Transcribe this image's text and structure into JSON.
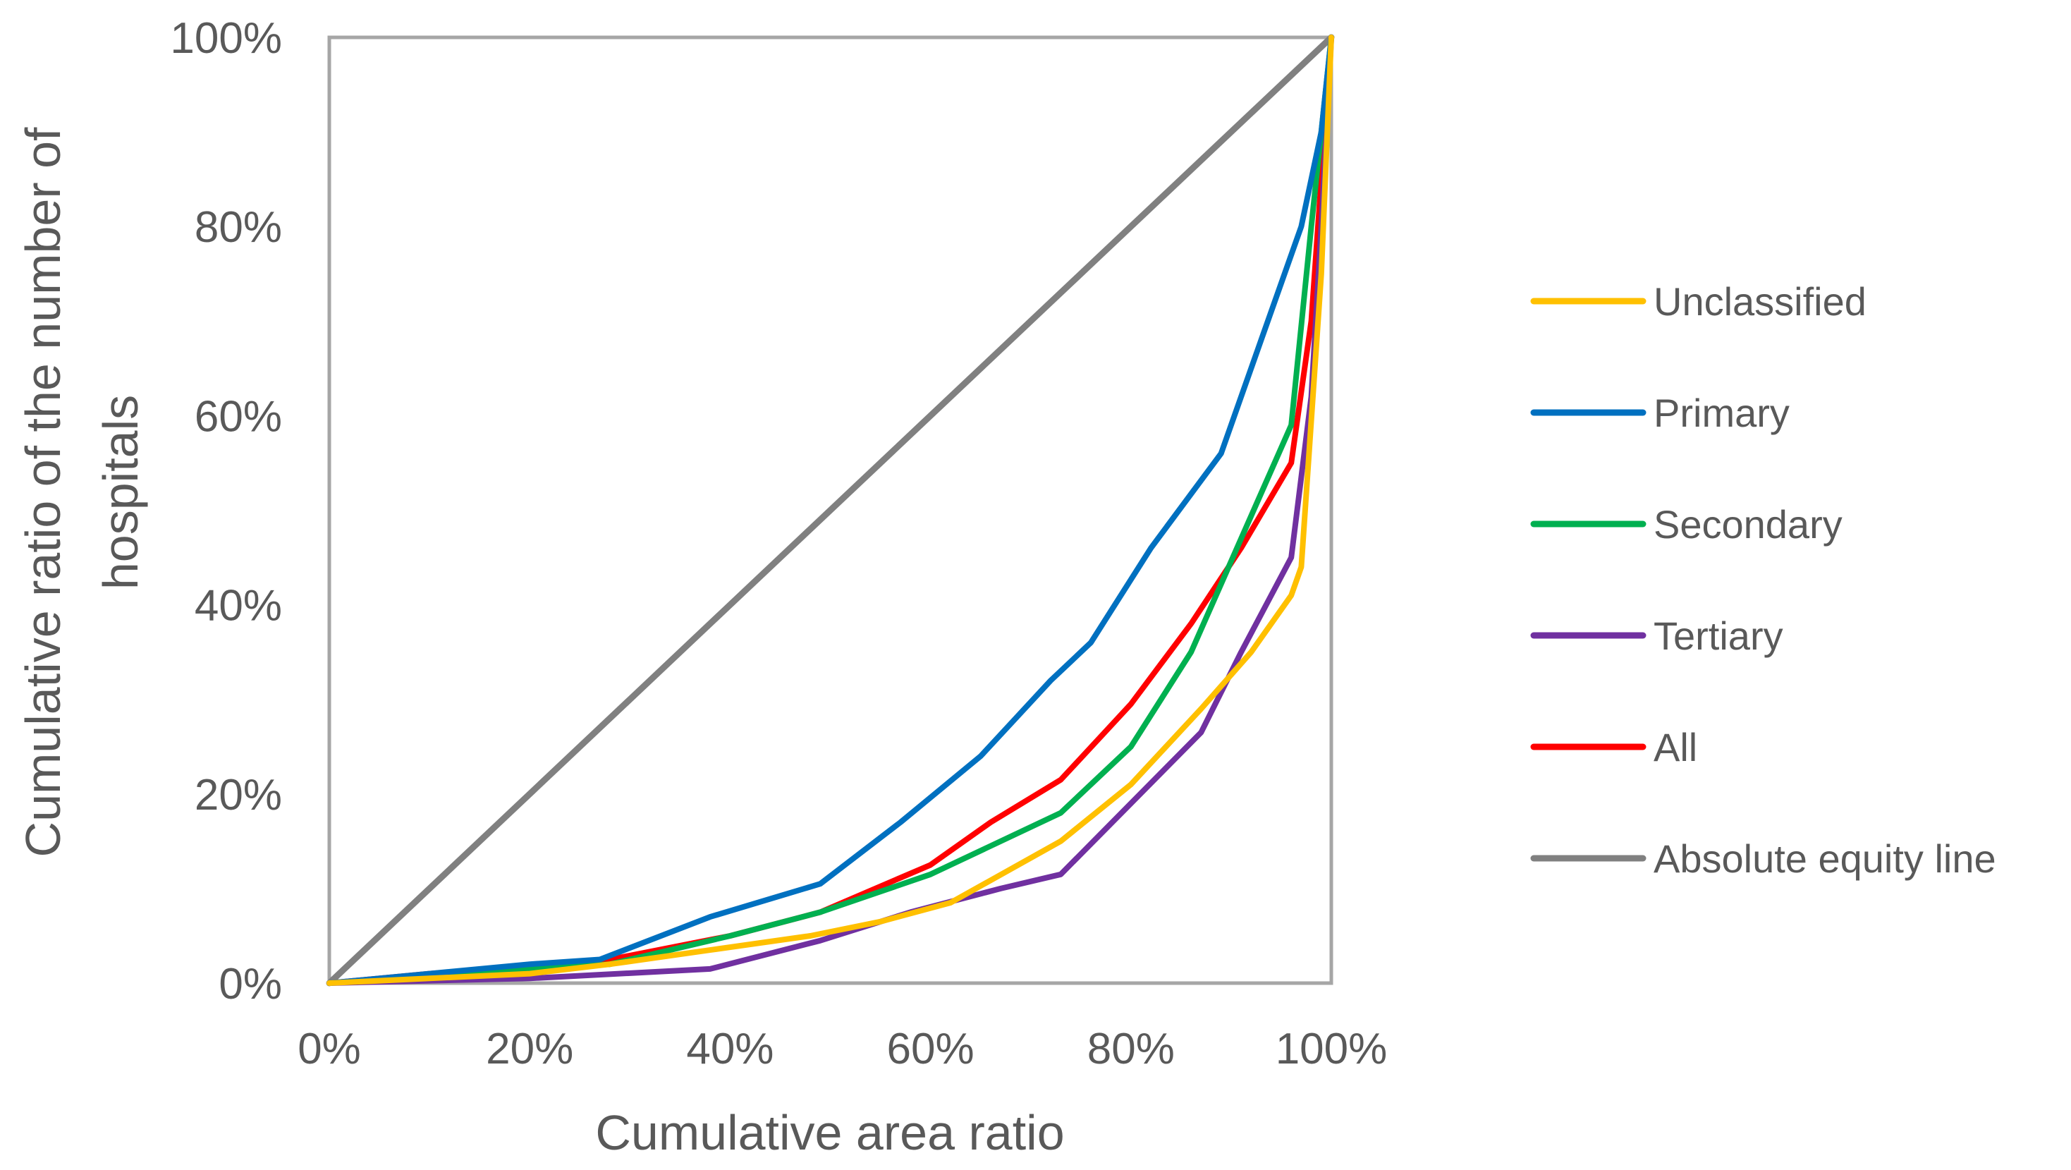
{
  "chart_data": {
    "type": "line",
    "title": "",
    "xlabel": "Cumulative area ratio",
    "ylabel_lines": [
      "Cumulative ratio of the number of",
      "hospitals"
    ],
    "xlim": [
      0,
      100
    ],
    "ylim": [
      0,
      100
    ],
    "grid": false,
    "legend_position": "right",
    "x_ticks": [
      "0%",
      "20%",
      "40%",
      "60%",
      "80%",
      "100%"
    ],
    "y_ticks": [
      "0%",
      "20%",
      "40%",
      "60%",
      "80%",
      "100%"
    ],
    "series": [
      {
        "name": "Unclassified",
        "color": "#FFC000",
        "points": [
          [
            0,
            0
          ],
          [
            10,
            0.5
          ],
          [
            20,
            1
          ],
          [
            28,
            2
          ],
          [
            38,
            3.5
          ],
          [
            48,
            5
          ],
          [
            55,
            6.5
          ],
          [
            62,
            8.5
          ],
          [
            73,
            15
          ],
          [
            80,
            21
          ],
          [
            87,
            29
          ],
          [
            92,
            35
          ],
          [
            96,
            41
          ],
          [
            97,
            44
          ],
          [
            99,
            75
          ],
          [
            100,
            100
          ]
        ]
      },
      {
        "name": "Primary",
        "color": "#0070C0",
        "points": [
          [
            0,
            0
          ],
          [
            10,
            1
          ],
          [
            20,
            2
          ],
          [
            27,
            2.5
          ],
          [
            38,
            7
          ],
          [
            49,
            10.5
          ],
          [
            57,
            17
          ],
          [
            65,
            24
          ],
          [
            72,
            32
          ],
          [
            76,
            36
          ],
          [
            82,
            46
          ],
          [
            89,
            56
          ],
          [
            93,
            68
          ],
          [
            97,
            80
          ],
          [
            99,
            90
          ],
          [
            100,
            100
          ]
        ]
      },
      {
        "name": "Secondary",
        "color": "#00B050",
        "points": [
          [
            0,
            0
          ],
          [
            10,
            0.8
          ],
          [
            20,
            1.5
          ],
          [
            28,
            2
          ],
          [
            40,
            5
          ],
          [
            49,
            7.5
          ],
          [
            60,
            11.5
          ],
          [
            73,
            18
          ],
          [
            80,
            25
          ],
          [
            86,
            35
          ],
          [
            91,
            47
          ],
          [
            96,
            59
          ],
          [
            98,
            80
          ],
          [
            100,
            100
          ]
        ]
      },
      {
        "name": "Tertiary",
        "color": "#7030A0",
        "points": [
          [
            0,
            0
          ],
          [
            20,
            0.5
          ],
          [
            38,
            1.5
          ],
          [
            49,
            4.5
          ],
          [
            58,
            7.5
          ],
          [
            67,
            10
          ],
          [
            73,
            11.5
          ],
          [
            80,
            19
          ],
          [
            87,
            26.5
          ],
          [
            91,
            35
          ],
          [
            96,
            45
          ],
          [
            98,
            62
          ],
          [
            99,
            80
          ],
          [
            100,
            100
          ]
        ]
      },
      {
        "name": "All",
        "color": "#FF0000",
        "points": [
          [
            0,
            0
          ],
          [
            10,
            1
          ],
          [
            20,
            1.8
          ],
          [
            28,
            2.5
          ],
          [
            40,
            5
          ],
          [
            49,
            7.5
          ],
          [
            60,
            12.5
          ],
          [
            66,
            17
          ],
          [
            73,
            21.5
          ],
          [
            80,
            29.5
          ],
          [
            86,
            38
          ],
          [
            91,
            46
          ],
          [
            96,
            55
          ],
          [
            98,
            70
          ],
          [
            100,
            100
          ]
        ]
      },
      {
        "name": "Absolute equity line",
        "color": "#808080",
        "points": [
          [
            0,
            0
          ],
          [
            100,
            100
          ]
        ]
      }
    ]
  }
}
